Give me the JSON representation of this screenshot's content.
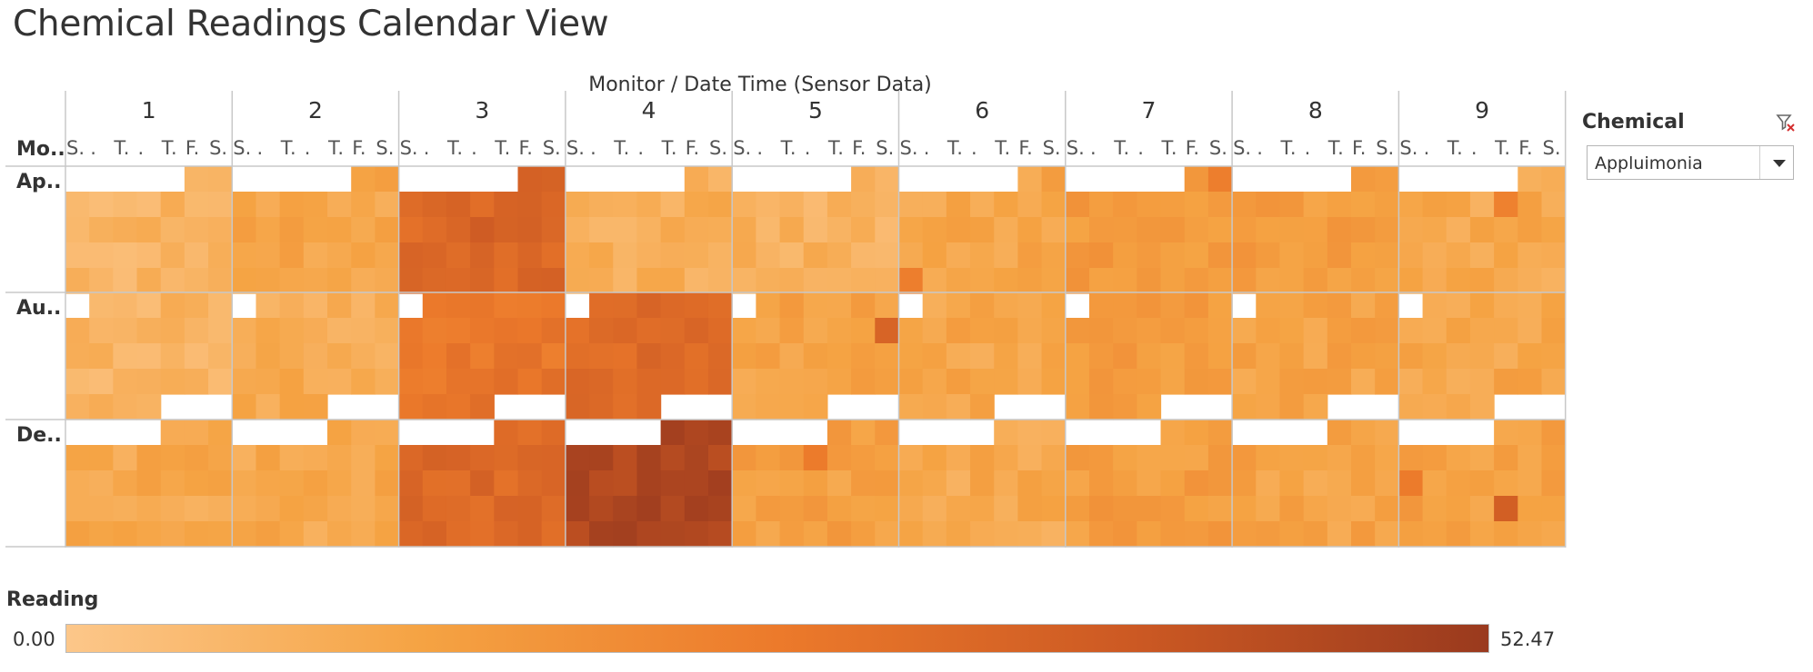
{
  "page": {
    "title": "Chemical Readings Calendar View"
  },
  "filter": {
    "label": "Chemical",
    "value": "Appluimonia",
    "clear_icon": "filter-clear-icon",
    "dropdown_icon": "caret-down-icon"
  },
  "legend": {
    "title": "Reading",
    "min_label": "0.00",
    "max_label": "52.47",
    "colors": [
      "#fcc78a",
      "#f5a343",
      "#ec7a2b",
      "#cc5923",
      "#9a3a1e"
    ]
  },
  "chart_data": {
    "type": "heatmap",
    "title": "Chemical Readings Calendar View",
    "column_header": "Monitor  /  Date Time (Sensor Data)",
    "row_header": "Mo..",
    "value_label": "Reading",
    "monitors": [
      "1",
      "2",
      "3",
      "4",
      "5",
      "6",
      "7",
      "8",
      "9"
    ],
    "months": [
      "Ap..",
      "Au..",
      "De.."
    ],
    "weekday_labels": [
      "S..",
      "M..",
      "T..",
      "W..",
      "T..",
      "F..",
      "S.."
    ],
    "weekday_display": [
      "S.",
      ".",
      "T.",
      ".",
      "T.",
      "F.",
      "S."
    ],
    "value_range": [
      0.0,
      52.47
    ],
    "cell_encoding": "each cell is one day: value in data units (Reading); null = no day in that calendar slot",
    "calendar_layout": [
      {
        "month": "Ap..",
        "weeks": 5,
        "first_weekday": 5,
        "days": 30
      },
      {
        "month": "Au..",
        "weeks": 5,
        "first_weekday": 1,
        "days": 31
      },
      {
        "month": "De..",
        "weeks": 5,
        "first_weekday": 4,
        "days": 31
      }
    ],
    "monitor_levels": [
      [
        7,
        7,
        11
      ],
      [
        12,
        10,
        11
      ],
      [
        33,
        28,
        33
      ],
      [
        9,
        32,
        47
      ],
      [
        8,
        13,
        14
      ],
      [
        12,
        12,
        11
      ],
      [
        16,
        15,
        15
      ],
      [
        15,
        13,
        13
      ],
      [
        11,
        12,
        14
      ]
    ],
    "highlights": [
      {
        "monitor": "3",
        "month": "Ap..",
        "day": 13,
        "value": 38
      },
      {
        "monitor": "5",
        "month": "Au..",
        "day": 13,
        "value": 35
      },
      {
        "monitor": "9",
        "month": "De..",
        "day": 22,
        "value": 37
      },
      {
        "monitor": "9",
        "month": "De..",
        "day": 11,
        "value": 26
      },
      {
        "monitor": "9",
        "month": "Ap..",
        "day": 7,
        "value": 24
      },
      {
        "monitor": "6",
        "month": "Ap..",
        "day": 24,
        "value": 25
      },
      {
        "monitor": "4",
        "month": "De..",
        "day": 27,
        "value": 50
      },
      {
        "monitor": "5",
        "month": "De..",
        "day": 7,
        "value": 26
      },
      {
        "monitor": "7",
        "month": "Ap..",
        "day": 2,
        "value": 25
      }
    ]
  }
}
